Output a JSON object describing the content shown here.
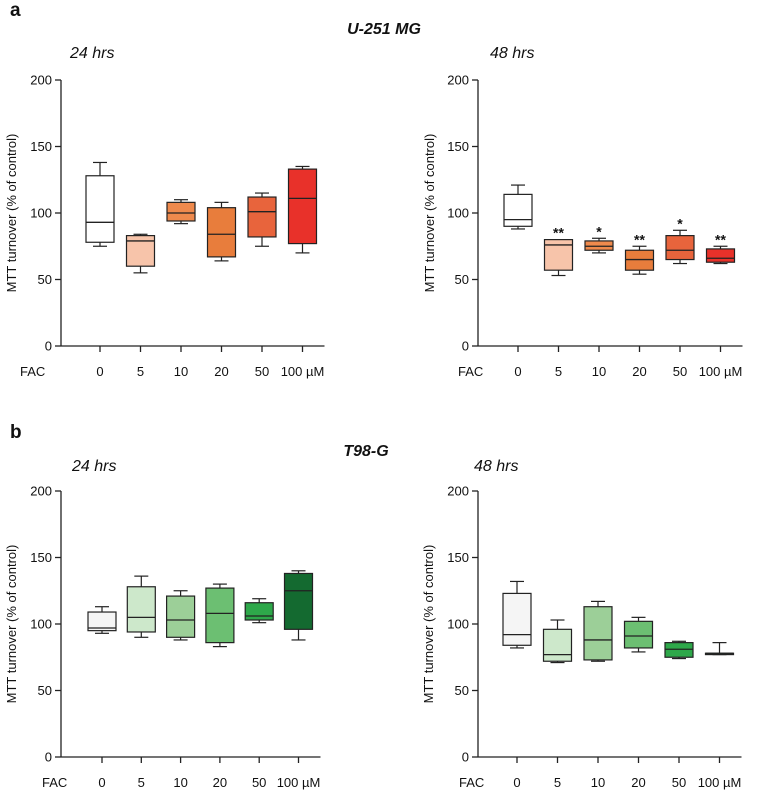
{
  "panels": [
    {
      "letter": "a",
      "cell_line": "U-251 MG"
    },
    {
      "letter": "b",
      "cell_line": "T98-G"
    }
  ],
  "chart_data": [
    {
      "type": "box",
      "panel": "a",
      "cell_line": "U-251 MG",
      "title": "24 hrs",
      "ylabel": "MTT turnover (% of control)",
      "xlabel": "FAC",
      "ylim": [
        0,
        200
      ],
      "yticks": [
        "0",
        "50",
        "100",
        "150",
        "200"
      ],
      "categories": [
        "0",
        "5",
        "10",
        "20",
        "50",
        "100 µM"
      ],
      "boxes": [
        {
          "min": 75,
          "q1": 78,
          "median": 93,
          "q3": 128,
          "max": 138,
          "color": "#ffffff",
          "sig": ""
        },
        {
          "min": 55,
          "q1": 60,
          "median": 79,
          "q3": 83,
          "max": 84,
          "color": "#f7c4aa",
          "sig": ""
        },
        {
          "min": 92,
          "q1": 94,
          "median": 100,
          "q3": 108,
          "max": 110,
          "color": "#ef8a4d",
          "sig": ""
        },
        {
          "min": 64,
          "q1": 67,
          "median": 84,
          "q3": 104,
          "max": 108,
          "color": "#e87d3c",
          "sig": ""
        },
        {
          "min": 75,
          "q1": 82,
          "median": 101,
          "q3": 112,
          "max": 115,
          "color": "#e8643c",
          "sig": ""
        },
        {
          "min": 70,
          "q1": 77,
          "median": 111,
          "q3": 133,
          "max": 135,
          "color": "#e8312a",
          "sig": ""
        }
      ]
    },
    {
      "type": "box",
      "panel": "a",
      "cell_line": "U-251 MG",
      "title": "48 hrs",
      "ylabel": "MTT turnover (% of control)",
      "xlabel": "FAC",
      "ylim": [
        0,
        200
      ],
      "yticks": [
        "0",
        "50",
        "100",
        "150",
        "200"
      ],
      "categories": [
        "0",
        "5",
        "10",
        "20",
        "50",
        "100 µM"
      ],
      "boxes": [
        {
          "min": 88,
          "q1": 90,
          "median": 95,
          "q3": 114,
          "max": 121,
          "color": "#ffffff",
          "sig": ""
        },
        {
          "min": 53,
          "q1": 57,
          "median": 76,
          "q3": 80,
          "max": 80,
          "color": "#f7c4aa",
          "sig": "**"
        },
        {
          "min": 70,
          "q1": 72,
          "median": 75,
          "q3": 79,
          "max": 81,
          "color": "#ef8a4d",
          "sig": "*"
        },
        {
          "min": 54,
          "q1": 57,
          "median": 65,
          "q3": 72,
          "max": 75,
          "color": "#e87d3c",
          "sig": "**"
        },
        {
          "min": 62,
          "q1": 65,
          "median": 72,
          "q3": 83,
          "max": 87,
          "color": "#e8643c",
          "sig": "*"
        },
        {
          "min": 62,
          "q1": 63,
          "median": 66,
          "q3": 73,
          "max": 75,
          "color": "#e8312a",
          "sig": "**"
        }
      ]
    },
    {
      "type": "box",
      "panel": "b",
      "cell_line": "T98-G",
      "title": "24 hrs",
      "ylabel": "MTT turnover (% of control)",
      "xlabel": "FAC",
      "ylim": [
        0,
        200
      ],
      "yticks": [
        "0",
        "50",
        "100",
        "150",
        "200"
      ],
      "categories": [
        "0",
        "5",
        "10",
        "20",
        "50",
        "100 µM"
      ],
      "boxes": [
        {
          "min": 93,
          "q1": 95,
          "median": 97,
          "q3": 109,
          "max": 113,
          "color": "#f5f5f5",
          "sig": ""
        },
        {
          "min": 90,
          "q1": 94,
          "median": 105,
          "q3": 128,
          "max": 136,
          "color": "#cde8cb",
          "sig": ""
        },
        {
          "min": 88,
          "q1": 90,
          "median": 103,
          "q3": 121,
          "max": 125,
          "color": "#9ccf98",
          "sig": ""
        },
        {
          "min": 83,
          "q1": 86,
          "median": 108,
          "q3": 127,
          "max": 130,
          "color": "#6cbf72",
          "sig": ""
        },
        {
          "min": 101,
          "q1": 103,
          "median": 106,
          "q3": 116,
          "max": 119,
          "color": "#2ea84a",
          "sig": ""
        },
        {
          "min": 88,
          "q1": 96,
          "median": 125,
          "q3": 138,
          "max": 140,
          "color": "#146a30",
          "sig": ""
        }
      ]
    },
    {
      "type": "box",
      "panel": "b",
      "cell_line": "T98-G",
      "title": "48 hrs",
      "ylabel": "MTT turnover (% of control)",
      "xlabel": "FAC",
      "ylim": [
        0,
        200
      ],
      "yticks": [
        "0",
        "50",
        "100",
        "150",
        "200"
      ],
      "categories": [
        "0",
        "5",
        "10",
        "20",
        "50",
        "100 µM"
      ],
      "boxes": [
        {
          "min": 82,
          "q1": 84,
          "median": 92,
          "q3": 123,
          "max": 132,
          "color": "#f5f5f5",
          "sig": ""
        },
        {
          "min": 71,
          "q1": 72,
          "median": 77,
          "q3": 96,
          "max": 103,
          "color": "#cde8cb",
          "sig": ""
        },
        {
          "min": 72,
          "q1": 73,
          "median": 88,
          "q3": 113,
          "max": 117,
          "color": "#9ccf98",
          "sig": ""
        },
        {
          "min": 79,
          "q1": 82,
          "median": 91,
          "q3": 102,
          "max": 105,
          "color": "#6cbf72",
          "sig": ""
        },
        {
          "min": 74,
          "q1": 75,
          "median": 81,
          "q3": 86,
          "max": 87,
          "color": "#2ea84a",
          "sig": ""
        },
        {
          "min": 77,
          "q1": 77,
          "median": 78,
          "q3": 78,
          "max": 86,
          "color": "#146a30",
          "sig": ""
        }
      ]
    }
  ]
}
